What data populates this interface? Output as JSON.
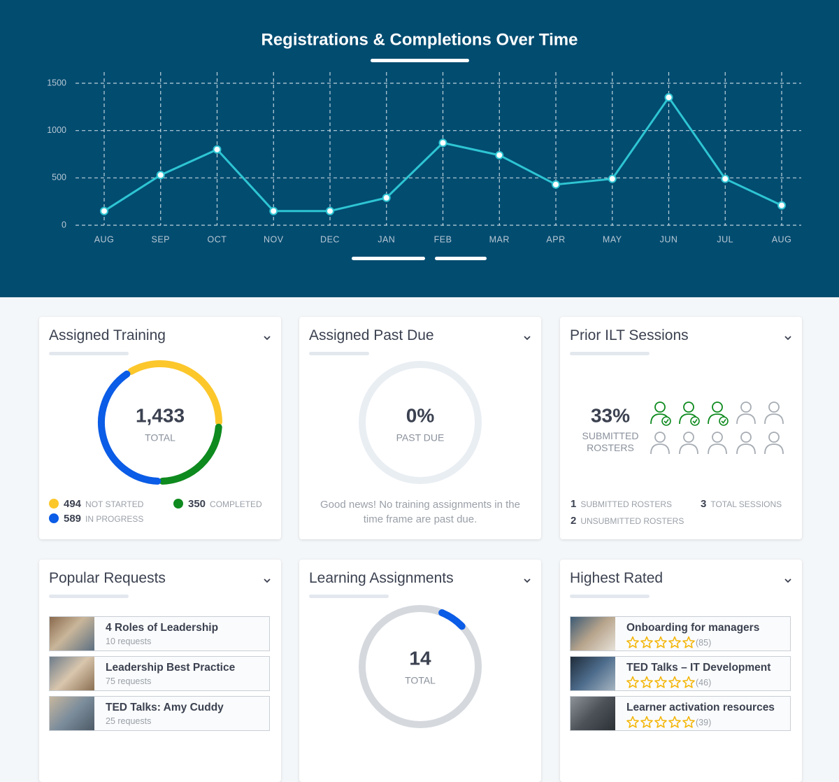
{
  "chart_data": {
    "type": "line",
    "title": "Registrations & Completions Over Time",
    "categories": [
      "AUG",
      "SEP",
      "OCT",
      "NOV",
      "DEC",
      "JAN",
      "FEB",
      "MAR",
      "APR",
      "MAY",
      "JUN",
      "JUL",
      "AUG"
    ],
    "values": [
      150,
      530,
      800,
      150,
      150,
      290,
      870,
      740,
      430,
      490,
      1350,
      490,
      210
    ],
    "color": "#2ec5d3",
    "ylim": [
      0,
      1500
    ],
    "yticks": [
      0,
      500,
      1000,
      1500
    ],
    "grid": true
  },
  "assigned_training": {
    "title": "Assigned Training",
    "total": "1,433",
    "total_label": "TOTAL",
    "segments": [
      {
        "name": "NOT STARTED",
        "value": 494,
        "color": "#fcc72b"
      },
      {
        "name": "COMPLETED",
        "value": 350,
        "color": "#0e8a1e"
      },
      {
        "name": "IN PROGRESS",
        "value": 589,
        "color": "#0b5ce6"
      }
    ]
  },
  "assigned_past_due": {
    "title": "Assigned Past Due",
    "percent": "0%",
    "label": "PAST DUE",
    "message": "Good news! No training assignments in the time frame are past due."
  },
  "prior_ilt_sessions": {
    "title": "Prior ILT Sessions",
    "percent": "33%",
    "label": "SUBMITTED ROSTERS",
    "stats": [
      {
        "count": "1",
        "label": "SUBMITTED ROSTERS"
      },
      {
        "count": "3",
        "label": "TOTAL SESSIONS"
      },
      {
        "count": "2",
        "label": "UNSUBMITTED ROSTERS"
      }
    ]
  },
  "popular_requests": {
    "title": "Popular Requests",
    "items": [
      {
        "title": "4 Roles of Leadership",
        "requests": "10 requests"
      },
      {
        "title": "Leadership Best Practice",
        "requests": "75 requests"
      },
      {
        "title": "TED Talks: Amy Cuddy",
        "requests": "25 requests"
      }
    ]
  },
  "learning_assignments": {
    "title": "Learning Assignments",
    "total": "14",
    "total_label": "TOTAL"
  },
  "highest_rated": {
    "title": "Highest Rated",
    "items": [
      {
        "title": "Onboarding for managers",
        "reviews": "(85)"
      },
      {
        "title": "TED Talks – IT Development",
        "reviews": "(46)"
      },
      {
        "title": "Learner activation resources",
        "reviews": "(39)"
      }
    ]
  }
}
